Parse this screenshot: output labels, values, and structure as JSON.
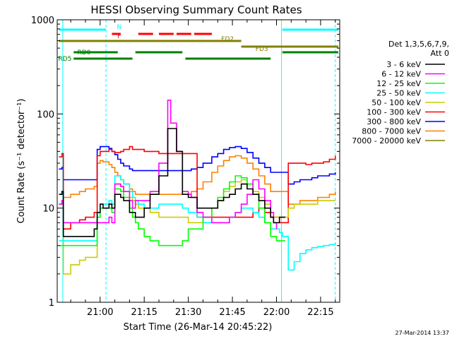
{
  "chart_data": {
    "type": "line",
    "title": "HESSI Observing Summary Count Rates",
    "xlabel": "Start Time (26-Mar-14 20:45:22)",
    "ylabel": "Count Rate (s⁻¹ detector⁻¹)",
    "y_scale": "log",
    "ylim": [
      1,
      1000
    ],
    "xlim_minutes": [
      45.4,
      141.5
    ],
    "x_ticks": [
      {
        "m": 60,
        "label": "21:00"
      },
      {
        "m": 75,
        "label": "21:15"
      },
      {
        "m": 90,
        "label": "21:30"
      },
      {
        "m": 105,
        "label": "21:45"
      },
      {
        "m": 120,
        "label": "22:00"
      },
      {
        "m": 135,
        "label": "22:15"
      }
    ],
    "y_ticks": [
      {
        "v": 1,
        "label": "1"
      },
      {
        "v": 10,
        "label": "10"
      },
      {
        "v": 100,
        "label": "100"
      },
      {
        "v": 1000,
        "label": "1000"
      }
    ],
    "legend_title": [
      "Det 1,3,5,6,7,9,",
      "Att 0"
    ],
    "series": [
      {
        "name": "3 - 6 keV",
        "color": "#000000",
        "x": [
          46,
          47,
          47.5,
          50,
          53,
          55,
          58,
          59,
          60,
          61,
          63,
          64,
          65,
          66,
          67,
          68,
          70,
          71,
          72,
          73,
          75,
          77,
          80,
          83,
          86,
          88,
          90,
          91,
          93,
          95,
          98,
          100,
          102,
          104,
          106,
          108,
          110,
          112,
          114,
          116,
          118,
          119,
          120,
          121,
          122,
          123
        ],
        "y": [
          14,
          15,
          5,
          5,
          5,
          5,
          6,
          9,
          11,
          10,
          11,
          10,
          14,
          14,
          13,
          12,
          9,
          9,
          8,
          8,
          10,
          14,
          22,
          70,
          40,
          14,
          13,
          13,
          10,
          10,
          10,
          12,
          13,
          14,
          16,
          18,
          16,
          14,
          12,
          10,
          8,
          7,
          7,
          8,
          8,
          8
        ]
      },
      {
        "name": "6 - 12 keV",
        "color": "#ff00ff",
        "x": [
          46,
          47,
          47.5,
          50,
          53,
          55,
          58,
          59,
          60,
          61,
          63,
          64,
          65,
          66,
          67,
          68,
          70,
          71,
          72,
          73,
          75,
          77,
          80,
          83,
          84,
          86,
          88,
          90,
          91,
          93,
          95,
          98,
          100,
          102,
          104,
          106,
          108,
          110,
          112,
          114,
          116,
          118,
          119,
          120
        ],
        "y": [
          11,
          12,
          7,
          7,
          7,
          7,
          7,
          7,
          7,
          7,
          8,
          7,
          18,
          18,
          17,
          15,
          12,
          10,
          12,
          12,
          12,
          15,
          30,
          140,
          80,
          40,
          15,
          14,
          13,
          9,
          8,
          7,
          7,
          7,
          8,
          9,
          11,
          14,
          20,
          16,
          12,
          9,
          7,
          6
        ]
      },
      {
        "name": "12 - 25 keV",
        "color": "#00ff00",
        "x": [
          46,
          47,
          47.5,
          50,
          53,
          55,
          58,
          59,
          60,
          61,
          63,
          64,
          65,
          66,
          67,
          68,
          70,
          71,
          72,
          73,
          75,
          77,
          80,
          83,
          86,
          88,
          90,
          91,
          93,
          95,
          98,
          100,
          102,
          104,
          106,
          108,
          110,
          112,
          114,
          116,
          118,
          119,
          120,
          121,
          122,
          123
        ],
        "y": [
          4,
          4,
          4,
          4,
          4,
          4,
          4,
          8,
          10,
          10,
          10,
          9,
          16,
          16,
          15,
          13,
          10,
          8,
          7,
          6,
          5,
          4.5,
          4,
          4,
          4,
          4.5,
          6,
          6,
          6,
          8,
          10,
          13,
          16,
          19,
          22,
          21,
          18,
          14,
          10,
          7,
          5,
          5,
          4.5,
          4.5,
          4.5,
          4.5
        ]
      },
      {
        "name": "25 - 50 keV",
        "color": "#00ffff",
        "x": [
          46,
          47,
          47.5,
          50,
          53,
          55,
          58,
          59,
          60,
          61,
          63,
          64,
          65,
          66,
          67,
          68,
          70,
          71,
          72,
          73,
          75,
          77,
          80,
          83,
          86,
          88,
          90,
          91,
          93,
          95,
          98,
          100,
          102,
          104,
          106,
          108,
          110,
          112,
          114,
          116,
          118,
          119,
          120,
          121,
          122,
          123,
          124,
          126,
          128,
          130,
          132,
          134,
          136,
          138,
          140
        ],
        "y": [
          4.5,
          4.5,
          4.5,
          4.5,
          4.5,
          4.5,
          4.5,
          9,
          11,
          11,
          12,
          11,
          22,
          22,
          20,
          18,
          15,
          13,
          12,
          11,
          10,
          10,
          11,
          11,
          11,
          10,
          9,
          9,
          8,
          7,
          7,
          7,
          7,
          8,
          9,
          10,
          10,
          9,
          8,
          7,
          6,
          6,
          6,
          5.5,
          5,
          5,
          2.2,
          2.7,
          3.3,
          3.6,
          3.8,
          3.9,
          4,
          4.1,
          4.3
        ]
      },
      {
        "name": "50 - 100 keV",
        "color": "#cccc00",
        "x": [
          46,
          47,
          47.5,
          50,
          53,
          55,
          58,
          59,
          60,
          61,
          63,
          64,
          65,
          66,
          67,
          68,
          70,
          71,
          72,
          73,
          75,
          77,
          80,
          83,
          86,
          88,
          90,
          91,
          93,
          95,
          98,
          100,
          102,
          104,
          106,
          108,
          110,
          112,
          114,
          116,
          118,
          119,
          120,
          121,
          122,
          123,
          124,
          126,
          128,
          130,
          132,
          134,
          136,
          138,
          140
        ],
        "y": [
          11,
          11,
          2,
          2.5,
          2.8,
          3,
          3,
          9,
          10,
          10,
          11,
          10,
          18,
          18,
          17,
          15,
          13,
          12,
          11,
          10,
          10,
          9,
          8,
          8,
          8,
          8,
          7,
          7,
          7,
          8,
          10,
          12,
          15,
          17,
          19,
          20,
          18,
          15,
          13,
          11,
          9,
          8,
          8,
          8,
          8,
          8,
          10,
          11,
          11,
          11,
          11,
          12,
          12,
          12,
          12
        ]
      },
      {
        "name": "100 - 300 keV",
        "color": "#ff0000",
        "x": [
          46,
          47,
          47.5,
          50,
          53,
          55,
          58,
          59,
          60,
          61,
          63,
          64,
          65,
          66,
          67,
          68,
          70,
          71,
          72,
          73,
          75,
          77,
          80,
          83,
          86,
          88,
          90,
          91,
          93,
          95,
          98,
          100,
          102,
          104,
          106,
          108,
          110,
          112,
          114,
          116,
          118,
          119,
          120,
          121,
          122,
          123,
          124,
          126,
          128,
          130,
          132,
          134,
          136,
          138,
          140
        ],
        "y": [
          35,
          38,
          6,
          7,
          7.5,
          8,
          9,
          36,
          40,
          40,
          42,
          40,
          39,
          39,
          40,
          42,
          45,
          42,
          42,
          42,
          40,
          40,
          38,
          38,
          38,
          38,
          38,
          38,
          8,
          8,
          8,
          8,
          8,
          8,
          8,
          8,
          8,
          9,
          10,
          9,
          8,
          8,
          8,
          7,
          7,
          7,
          30,
          30,
          30,
          29,
          30,
          30,
          31,
          33,
          36
        ]
      },
      {
        "name": "300 - 800 keV",
        "color": "#0000ff",
        "x": [
          46,
          47,
          47.5,
          50,
          53,
          55,
          58,
          59,
          60,
          61,
          63,
          64,
          65,
          66,
          67,
          68,
          70,
          71,
          72,
          73,
          75,
          77,
          80,
          83,
          86,
          88,
          90,
          91,
          93,
          95,
          98,
          100,
          102,
          104,
          106,
          108,
          110,
          112,
          114,
          116,
          118,
          119,
          120,
          121,
          122,
          123,
          124,
          126,
          128,
          130,
          132,
          134,
          136,
          138,
          140
        ],
        "y": [
          26,
          27,
          20,
          20,
          20,
          20,
          20,
          42,
          45,
          45,
          43,
          40,
          37,
          33,
          30,
          28,
          26,
          25,
          25,
          25,
          25,
          25,
          25,
          25,
          25,
          25,
          25,
          26,
          27,
          30,
          35,
          38,
          42,
          44,
          45,
          43,
          39,
          34,
          30,
          27,
          24,
          24,
          24,
          24,
          24,
          24,
          18,
          19,
          20,
          20,
          21,
          22,
          22,
          23,
          24
        ]
      },
      {
        "name": "800 - 7000 keV",
        "color": "#ff8000",
        "x": [
          46,
          47,
          47.5,
          50,
          53,
          55,
          58,
          59,
          60,
          61,
          63,
          64,
          65,
          66,
          67,
          68,
          70,
          71,
          72,
          73,
          75,
          77,
          80,
          83,
          86,
          88,
          90,
          91,
          93,
          95,
          98,
          100,
          102,
          104,
          106,
          108,
          110,
          112,
          114,
          116,
          118,
          119,
          120,
          121,
          122,
          123,
          124,
          126,
          128,
          130,
          132,
          134,
          136,
          138,
          140
        ],
        "y": [
          11,
          12,
          13,
          14,
          15,
          16,
          17,
          30,
          32,
          31,
          29,
          27,
          24,
          22,
          20,
          18,
          16,
          15,
          14,
          14,
          14,
          14,
          14,
          14,
          14,
          14,
          14,
          15,
          16,
          19,
          24,
          28,
          32,
          35,
          36,
          34,
          30,
          26,
          22,
          18,
          15,
          15,
          15,
          15,
          15,
          15,
          11,
          11,
          12,
          12,
          12,
          13,
          13,
          14,
          15
        ]
      },
      {
        "name": "7000 - 20000 keV",
        "color": "#808000",
        "x": [],
        "y": []
      }
    ],
    "state_bars": [
      {
        "label": "N",
        "color": "#00ffff",
        "segments": [
          [
            46,
            62
          ],
          [
            122,
            141
          ]
        ]
      },
      {
        "label": "F",
        "color": "#ff0000",
        "segments": [
          [
            64,
            67
          ],
          [
            73,
            78
          ],
          [
            80,
            85
          ],
          [
            86,
            91
          ],
          [
            92,
            98
          ]
        ]
      },
      {
        "label": "FD2",
        "color": "#808000",
        "segments": [
          [
            46,
            108
          ]
        ]
      },
      {
        "label": "FD3",
        "color": "#808000",
        "segments": [
          [
            108,
            141
          ]
        ]
      },
      {
        "label": "RD0",
        "color": "#008000",
        "segments": [
          [
            51,
            66
          ],
          [
            72,
            88
          ],
          [
            122,
            141
          ]
        ]
      },
      {
        "label": "RD5",
        "color": "#008000",
        "segments": [
          [
            51,
            71
          ],
          [
            89,
            118
          ]
        ]
      }
    ],
    "vlines_solid": [
      47.3,
      121.7
    ],
    "vlines_dashed": [
      62,
      140
    ],
    "timestamp": "27-Mar-2014 13:37"
  }
}
